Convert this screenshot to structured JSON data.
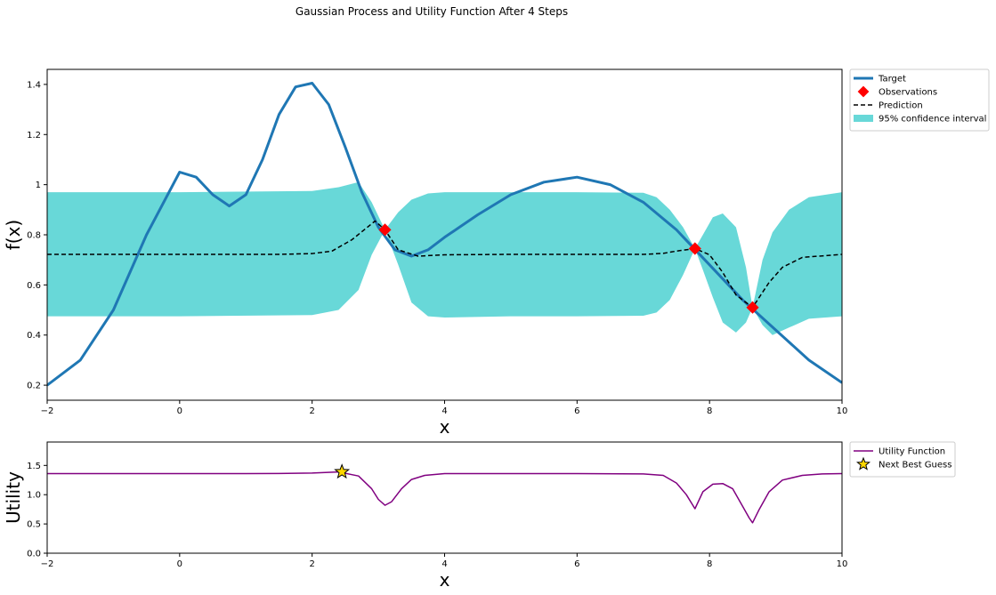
{
  "suptitle": "Gaussian Process and Utility Function After 4 Steps",
  "chart_data": [
    {
      "type": "line",
      "xlabel": "x",
      "ylabel": "f(x)",
      "xlim": [
        -2,
        10
      ],
      "ylim": [
        0.14,
        1.46
      ],
      "xticks": [
        -2,
        0,
        2,
        4,
        6,
        8,
        10
      ],
      "yticks": [
        0.2,
        0.4,
        0.6,
        0.8,
        1.0,
        1.2,
        1.4
      ],
      "grid": false,
      "legend_position": "outside-top-right",
      "series": [
        {
          "name": "Target",
          "kind": "line",
          "color": "#1f77b4",
          "x": [
            -2,
            -1.5,
            -1,
            -0.5,
            0,
            0.25,
            0.5,
            0.75,
            1,
            1.25,
            1.5,
            1.75,
            2,
            2.25,
            2.5,
            2.75,
            3,
            3.25,
            3.5,
            3.75,
            4,
            4.5,
            5,
            5.5,
            6,
            6.5,
            7,
            7.5,
            8,
            8.5,
            9,
            9.5,
            10
          ],
          "y": [
            0.2,
            0.3,
            0.5,
            0.8,
            1.05,
            1.03,
            0.96,
            0.915,
            0.96,
            1.1,
            1.28,
            1.39,
            1.405,
            1.32,
            1.15,
            0.97,
            0.83,
            0.74,
            0.715,
            0.74,
            0.79,
            0.88,
            0.96,
            1.01,
            1.03,
            1.0,
            0.93,
            0.82,
            0.68,
            0.54,
            0.42,
            0.3,
            0.21
          ]
        },
        {
          "name": "Observations",
          "kind": "scatter",
          "color": "#ff0000",
          "x": [
            3.1,
            7.78,
            8.65
          ],
          "y": [
            0.82,
            0.745,
            0.51
          ]
        },
        {
          "name": "Prediction",
          "kind": "dashed-line",
          "color": "#000000",
          "x": [
            -2,
            0,
            1.5,
            2,
            2.3,
            2.6,
            2.95,
            3.1,
            3.3,
            3.6,
            4,
            5,
            6,
            7,
            7.3,
            7.5,
            7.78,
            8,
            8.2,
            8.4,
            8.65,
            8.9,
            9.1,
            9.4,
            10
          ],
          "y": [
            0.722,
            0.722,
            0.722,
            0.725,
            0.735,
            0.78,
            0.855,
            0.82,
            0.74,
            0.715,
            0.72,
            0.722,
            0.722,
            0.722,
            0.726,
            0.735,
            0.745,
            0.72,
            0.65,
            0.56,
            0.51,
            0.61,
            0.67,
            0.71,
            0.722
          ]
        },
        {
          "name": "95% confidence interval",
          "kind": "band",
          "color": "#68d8d8",
          "x": [
            -2,
            0,
            2,
            2.4,
            2.7,
            2.9,
            3.1,
            3.3,
            3.5,
            3.75,
            4,
            5,
            6,
            7,
            7.2,
            7.4,
            7.6,
            7.78,
            7.9,
            8.05,
            8.2,
            8.4,
            8.55,
            8.65,
            8.8,
            8.95,
            9.2,
            9.5,
            10
          ],
          "lower": [
            0.475,
            0.475,
            0.48,
            0.5,
            0.58,
            0.72,
            0.82,
            0.68,
            0.53,
            0.475,
            0.47,
            0.475,
            0.475,
            0.477,
            0.49,
            0.54,
            0.64,
            0.745,
            0.66,
            0.55,
            0.45,
            0.41,
            0.45,
            0.51,
            0.44,
            0.4,
            0.43,
            0.465,
            0.475
          ],
          "upper": [
            0.97,
            0.97,
            0.975,
            0.99,
            1.01,
            0.93,
            0.82,
            0.89,
            0.94,
            0.965,
            0.97,
            0.97,
            0.97,
            0.968,
            0.95,
            0.9,
            0.83,
            0.745,
            0.8,
            0.87,
            0.885,
            0.83,
            0.67,
            0.51,
            0.7,
            0.81,
            0.9,
            0.95,
            0.97
          ]
        }
      ]
    },
    {
      "type": "line",
      "xlabel": "x",
      "ylabel": "Utility",
      "xlim": [
        -2,
        10
      ],
      "ylim": [
        0,
        1.9
      ],
      "xticks": [
        -2,
        0,
        2,
        4,
        6,
        8,
        10
      ],
      "yticks": [
        0.0,
        0.5,
        1.0,
        1.5
      ],
      "yticklabels": [
        "0.0",
        "0.5",
        "1.0",
        "1.5"
      ],
      "grid": false,
      "legend_position": "outside-top-right",
      "series": [
        {
          "name": "Utility Function",
          "kind": "line",
          "color": "#800080",
          "x": [
            -2,
            0,
            1,
            1.5,
            2,
            2.4,
            2.7,
            2.9,
            3.0,
            3.1,
            3.2,
            3.35,
            3.5,
            3.7,
            4,
            5,
            6,
            7,
            7.3,
            7.5,
            7.65,
            7.78,
            7.9,
            8.05,
            8.2,
            8.35,
            8.5,
            8.6,
            8.65,
            8.75,
            8.9,
            9.1,
            9.4,
            9.7,
            10
          ],
          "y": [
            1.36,
            1.36,
            1.36,
            1.362,
            1.37,
            1.39,
            1.32,
            1.1,
            0.92,
            0.82,
            0.88,
            1.1,
            1.26,
            1.33,
            1.36,
            1.36,
            1.36,
            1.355,
            1.33,
            1.2,
            1.0,
            0.76,
            1.05,
            1.18,
            1.19,
            1.1,
            0.8,
            0.6,
            0.52,
            0.75,
            1.05,
            1.25,
            1.33,
            1.355,
            1.36
          ]
        },
        {
          "name": "Next Best Guess",
          "kind": "scatter",
          "marker": "star",
          "color": "#ffd700",
          "x": [
            2.45
          ],
          "y": [
            1.39
          ]
        }
      ]
    }
  ]
}
